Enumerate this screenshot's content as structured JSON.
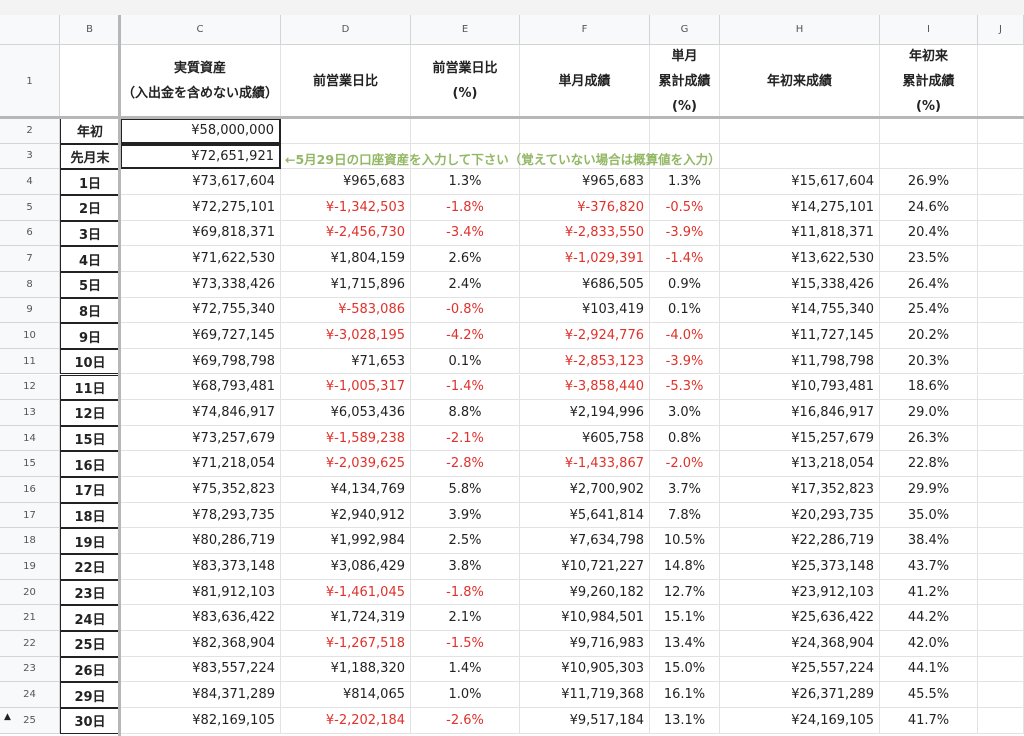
{
  "column_headers": [
    "B",
    "C",
    "D",
    "E",
    "F",
    "G",
    "H",
    "I",
    "J"
  ],
  "row_numbers": [
    1,
    2,
    3,
    4,
    5,
    6,
    7,
    8,
    9,
    10,
    11,
    12,
    13,
    14,
    15,
    16,
    17,
    18,
    19,
    20,
    21,
    22,
    23,
    24,
    25
  ],
  "header_cells": [
    [
      "実質資産",
      "（入出金を含めない成績）"
    ],
    [
      "前営業日比"
    ],
    [
      "前営業日比",
      "(%)"
    ],
    [
      "単月成績"
    ],
    [
      "単月",
      "累計成績",
      "(%)"
    ],
    [
      "年初来成績"
    ],
    [
      "年初来",
      "累計成績",
      "(%)"
    ]
  ],
  "note": "←5月29日の口座資産を入力して下さい（覚えていない場合は概算値を入力）",
  "rows": [
    [
      "年初",
      "¥58,000,000"
    ],
    [
      "先月末",
      "¥72,651,921"
    ],
    [
      "1日",
      "¥73,617,604",
      "¥965,683",
      "1.3%",
      "¥965,683",
      "1.3%",
      "¥15,617,604",
      "26.9%"
    ],
    [
      "2日",
      "¥72,275,101",
      "¥-1,342,503",
      "-1.8%",
      "¥-376,820",
      "-0.5%",
      "¥14,275,101",
      "24.6%"
    ],
    [
      "3日",
      "¥69,818,371",
      "¥-2,456,730",
      "-3.4%",
      "¥-2,833,550",
      "-3.9%",
      "¥11,818,371",
      "20.4%"
    ],
    [
      "4日",
      "¥71,622,530",
      "¥1,804,159",
      "2.6%",
      "¥-1,029,391",
      "-1.4%",
      "¥13,622,530",
      "23.5%"
    ],
    [
      "5日",
      "¥73,338,426",
      "¥1,715,896",
      "2.4%",
      "¥686,505",
      "0.9%",
      "¥15,338,426",
      "26.4%"
    ],
    [
      "8日",
      "¥72,755,340",
      "¥-583,086",
      "-0.8%",
      "¥103,419",
      "0.1%",
      "¥14,755,340",
      "25.4%"
    ],
    [
      "9日",
      "¥69,727,145",
      "¥-3,028,195",
      "-4.2%",
      "¥-2,924,776",
      "-4.0%",
      "¥11,727,145",
      "20.2%"
    ],
    [
      "10日",
      "¥69,798,798",
      "¥71,653",
      "0.1%",
      "¥-2,853,123",
      "-3.9%",
      "¥11,798,798",
      "20.3%"
    ],
    [
      "11日",
      "¥68,793,481",
      "¥-1,005,317",
      "-1.4%",
      "¥-3,858,440",
      "-5.3%",
      "¥10,793,481",
      "18.6%"
    ],
    [
      "12日",
      "¥74,846,917",
      "¥6,053,436",
      "8.8%",
      "¥2,194,996",
      "3.0%",
      "¥16,846,917",
      "29.0%"
    ],
    [
      "15日",
      "¥73,257,679",
      "¥-1,589,238",
      "-2.1%",
      "¥605,758",
      "0.8%",
      "¥15,257,679",
      "26.3%"
    ],
    [
      "16日",
      "¥71,218,054",
      "¥-2,039,625",
      "-2.8%",
      "¥-1,433,867",
      "-2.0%",
      "¥13,218,054",
      "22.8%"
    ],
    [
      "17日",
      "¥75,352,823",
      "¥4,134,769",
      "5.8%",
      "¥2,700,902",
      "3.7%",
      "¥17,352,823",
      "29.9%"
    ],
    [
      "18日",
      "¥78,293,735",
      "¥2,940,912",
      "3.9%",
      "¥5,641,814",
      "7.8%",
      "¥20,293,735",
      "35.0%"
    ],
    [
      "19日",
      "¥80,286,719",
      "¥1,992,984",
      "2.5%",
      "¥7,634,798",
      "10.5%",
      "¥22,286,719",
      "38.4%"
    ],
    [
      "22日",
      "¥83,373,148",
      "¥3,086,429",
      "3.8%",
      "¥10,721,227",
      "14.8%",
      "¥25,373,148",
      "43.7%"
    ],
    [
      "23日",
      "¥81,912,103",
      "¥-1,461,045",
      "-1.8%",
      "¥9,260,182",
      "12.7%",
      "¥23,912,103",
      "41.2%"
    ],
    [
      "24日",
      "¥83,636,422",
      "¥1,724,319",
      "2.1%",
      "¥10,984,501",
      "15.1%",
      "¥25,636,422",
      "44.2%"
    ],
    [
      "25日",
      "¥82,368,904",
      "¥-1,267,518",
      "-1.5%",
      "¥9,716,983",
      "13.4%",
      "¥24,368,904",
      "42.0%"
    ],
    [
      "26日",
      "¥83,557,224",
      "¥1,188,320",
      "1.4%",
      "¥10,905,303",
      "15.0%",
      "¥25,557,224",
      "44.1%"
    ],
    [
      "29日",
      "¥84,371,289",
      "¥814,065",
      "1.0%",
      "¥11,719,368",
      "16.1%",
      "¥26,371,289",
      "45.5%"
    ],
    [
      "30日",
      "¥82,169,105",
      "¥-2,202,184",
      "-2.6%",
      "¥9,517,184",
      "13.1%",
      "¥24,169,105",
      "41.7%"
    ]
  ]
}
